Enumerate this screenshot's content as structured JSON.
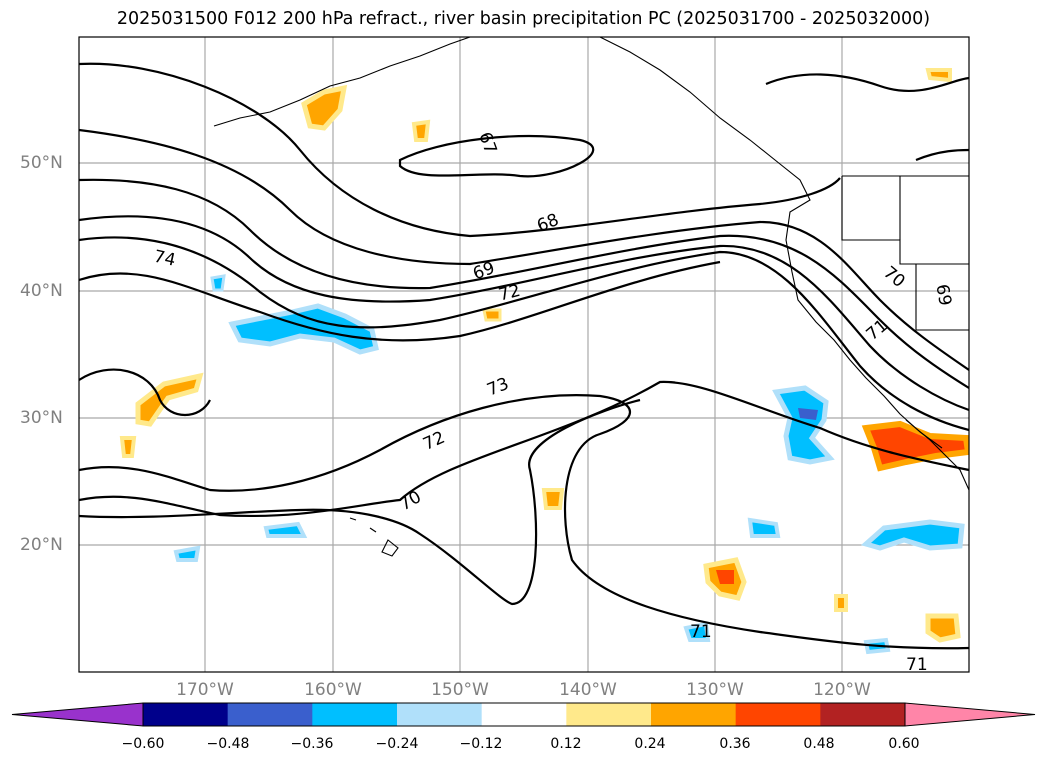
{
  "title": "2025031500 F012 200 hPa refract., river basin precipitation PC (2025031700 - 2025032000)",
  "map": {
    "lat_labels": [
      "50°N",
      "40°N",
      "30°N",
      "20°N"
    ],
    "lon_labels": [
      "170°W",
      "160°W",
      "150°W",
      "140°W",
      "130°W",
      "120°W"
    ],
    "contour_labels": [
      "67",
      "68",
      "69",
      "72",
      "74",
      "73",
      "72",
      "70",
      "71",
      "71",
      "70",
      "69",
      "71"
    ],
    "colors": {
      "contour": "#000000",
      "grid": "#a9a9a9",
      "coast": "#000000"
    }
  },
  "colorbar": {
    "ticks": [
      "−0.60",
      "−0.48",
      "−0.36",
      "−0.24",
      "−0.12",
      "0.12",
      "0.24",
      "0.36",
      "0.48",
      "0.60"
    ],
    "colors": [
      "#9932cc",
      "#00008b",
      "#3a5fcd",
      "#00bfff",
      "#b0e0fa",
      "#ffffff",
      "#ffe98b",
      "#ffa500",
      "#ff4500",
      "#b22222",
      "#ff85a8"
    ]
  }
}
